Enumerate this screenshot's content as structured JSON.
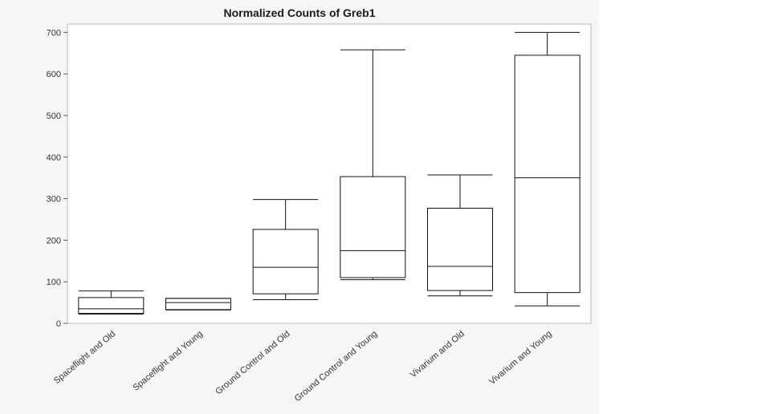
{
  "chart_data": {
    "type": "box",
    "title": "Normalized Counts of Greb1",
    "xlabel": "",
    "ylabel": "",
    "ylim": [
      0,
      720
    ],
    "yticks": [
      0,
      100,
      200,
      300,
      400,
      500,
      600,
      700
    ],
    "grid": false,
    "categories": [
      "Spaceflight and Old",
      "Spaceflight and Young",
      "Ground Control and Old",
      "Ground Control and Young",
      "Vivarium and Old",
      "Vivarium and Young"
    ],
    "boxes": [
      {
        "category": "Spaceflight and Old",
        "min": 22,
        "q1": 24,
        "median": 35,
        "q3": 62,
        "max": 78
      },
      {
        "category": "Spaceflight and Young",
        "min": 32,
        "q1": 33,
        "median": 50,
        "q3": 60,
        "max": 60
      },
      {
        "category": "Ground Control and Old",
        "min": 57,
        "q1": 71,
        "median": 135,
        "q3": 226,
        "max": 298
      },
      {
        "category": "Ground Control and Young",
        "min": 105,
        "q1": 110,
        "median": 175,
        "q3": 353,
        "max": 658
      },
      {
        "category": "Vivarium and Old",
        "min": 66,
        "q1": 79,
        "median": 137,
        "q3": 277,
        "max": 357
      },
      {
        "category": "Vivarium and Young",
        "min": 42,
        "q1": 74,
        "median": 350,
        "q3": 645,
        "max": 700
      }
    ]
  }
}
